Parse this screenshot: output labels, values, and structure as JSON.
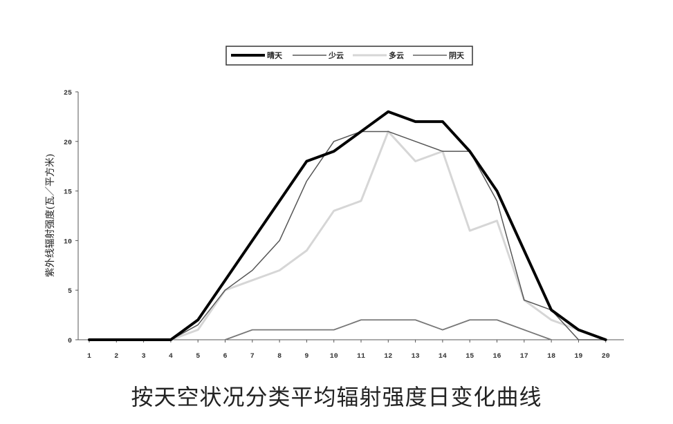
{
  "caption": "按天空状况分类平均辐射强度日变化曲线",
  "chart_data": {
    "type": "line",
    "title": "按天空状况分类平均辐射强度日变化曲线",
    "xlabel": "",
    "ylabel": "紫外线辐射强度(瓦／平方米)",
    "x": [
      1,
      2,
      3,
      4,
      5,
      6,
      7,
      8,
      9,
      10,
      11,
      12,
      13,
      14,
      15,
      16,
      17,
      18,
      19,
      20
    ],
    "ylim": [
      0,
      25
    ],
    "yticks": [
      0,
      5,
      10,
      15,
      20,
      25
    ],
    "legend_position": "top-center",
    "grid": false,
    "series": [
      {
        "name": "晴天",
        "color": "#000000",
        "width": 4,
        "values": [
          0,
          0,
          0,
          0,
          2,
          6,
          10,
          14,
          18,
          19,
          21,
          23,
          22,
          22,
          19,
          15,
          9,
          3,
          1,
          0
        ]
      },
      {
        "name": "少云",
        "color": "#555555",
        "width": 1.5,
        "values": [
          0,
          0,
          0,
          0,
          1.5,
          5,
          7,
          10,
          16,
          20,
          21,
          21,
          20,
          19,
          19,
          14,
          4,
          3,
          0,
          0
        ]
      },
      {
        "name": "多云",
        "color": "#d6d6d6",
        "width": 3,
        "values": [
          0,
          0,
          0,
          0,
          1,
          5,
          6,
          7,
          9,
          13,
          14,
          21,
          18,
          19,
          11,
          12,
          4,
          2,
          1,
          0
        ]
      },
      {
        "name": "阴天",
        "color": "#777777",
        "width": 1.8,
        "values": [
          null,
          null,
          null,
          null,
          null,
          0,
          1,
          1,
          1,
          1,
          2,
          2,
          2,
          1,
          2,
          2,
          1,
          0,
          null,
          null
        ]
      }
    ]
  }
}
